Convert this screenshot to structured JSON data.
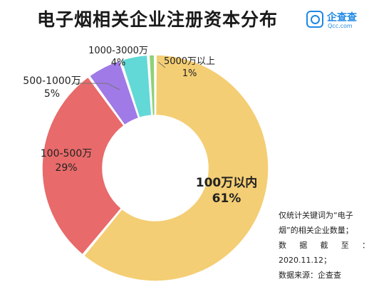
{
  "header": {
    "title": "电子烟相关企业注册资本分布"
  },
  "brand": {
    "name": "企查查",
    "domain": "Qcc.com"
  },
  "chart_data": {
    "type": "pie",
    "title": "电子烟相关企业注册资本分布",
    "donut": true,
    "categories": [
      "100万以内",
      "100-500万",
      "500-1000万",
      "1000-3000万",
      "5000万以上"
    ],
    "values": [
      61,
      29,
      5,
      4,
      1
    ],
    "labels": [
      "61%",
      "29%",
      "5%",
      "4%",
      "1%"
    ],
    "colors": [
      "#f4ce74",
      "#e86a6a",
      "#a07ae6",
      "#62d9d6",
      "#8fd178"
    ],
    "start_angle_deg": 0,
    "direction": "clockwise"
  },
  "notes": [
    "仅统计关键词为“电子",
    "烟”的相关企业数量；",
    "数 据 截 至 ：",
    "2020.11.12；",
    "数据来源：企查查"
  ]
}
